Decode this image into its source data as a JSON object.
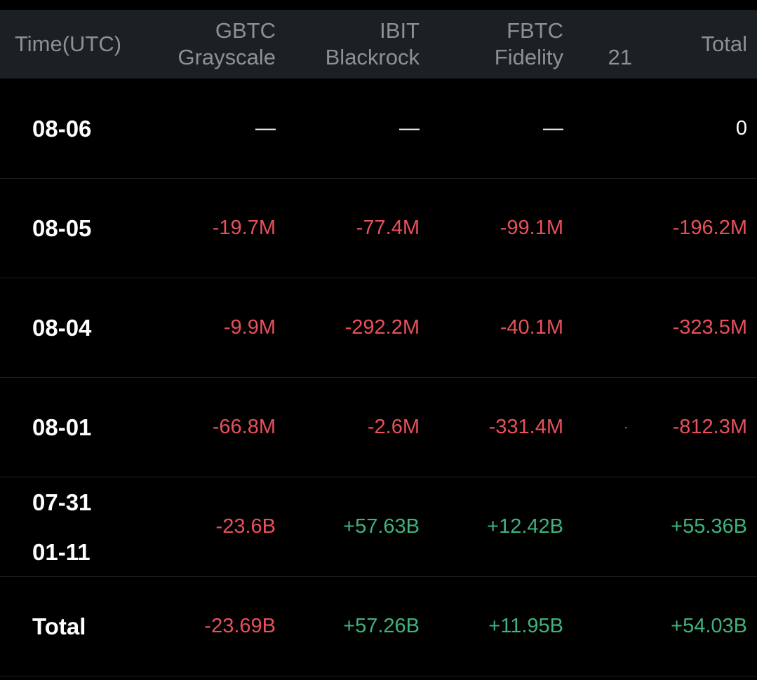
{
  "header": {
    "time": "Time(UTC)",
    "gbtc_ticker": "GBTC",
    "gbtc_name": "Grayscale",
    "ibit_ticker": "IBIT",
    "ibit_name": "Blackrock",
    "fbtc_ticker": "FBTC",
    "fbtc_name": "Fidelity",
    "more_count": "21",
    "total": "Total"
  },
  "rows": [
    {
      "date": "08-06",
      "gbtc": "—",
      "ibit": "—",
      "fbtc": "—",
      "total": "0"
    },
    {
      "date": "08-05",
      "gbtc": "-19.7M",
      "ibit": "-77.4M",
      "fbtc": "-99.1M",
      "total": "-196.2M"
    },
    {
      "date": "08-04",
      "gbtc": "-9.9M",
      "ibit": "-292.2M",
      "fbtc": "-40.1M",
      "total": "-323.5M"
    },
    {
      "date": "08-01",
      "gbtc": "-66.8M",
      "ibit": "-2.6M",
      "fbtc": "-331.4M",
      "total": "-812.3M"
    },
    {
      "date_top": "07-31",
      "date_bottom": "01-11",
      "gbtc": "-23.6B",
      "ibit": "+57.63B",
      "fbtc": "+12.42B",
      "total": "+55.36B"
    },
    {
      "date": "Total",
      "gbtc": "-23.69B",
      "ibit": "+57.26B",
      "fbtc": "+11.95B",
      "total": "+54.03B"
    }
  ],
  "colors": {
    "background": "#000000",
    "header_bg": "#1c1f23",
    "header_text": "#8c9196",
    "negative": "#e8505b",
    "positive": "#3fb27f",
    "neutral": "#ffffff"
  }
}
